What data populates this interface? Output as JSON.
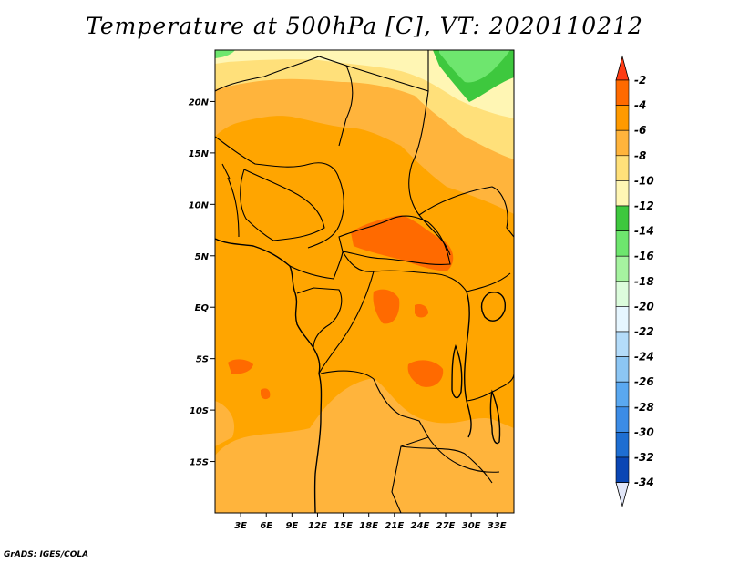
{
  "title": "Temperature at 500hPa [C], VT: 2020110212",
  "credit": "GrADS: IGES/COLA",
  "map": {
    "projection": "latlon",
    "lon_range": [
      0,
      35
    ],
    "lat_range": [
      -20,
      25
    ],
    "lat_ticks": [
      {
        "lat": 20,
        "label": "20N"
      },
      {
        "lat": 15,
        "label": "15N"
      },
      {
        "lat": 10,
        "label": "10N"
      },
      {
        "lat": 5,
        "label": "5N"
      },
      {
        "lat": 0,
        "label": "EQ"
      },
      {
        "lat": -5,
        "label": "5S"
      },
      {
        "lat": -10,
        "label": "10S"
      },
      {
        "lat": -15,
        "label": "15S"
      }
    ],
    "lon_ticks": [
      {
        "lon": 3,
        "label": "3E"
      },
      {
        "lon": 6,
        "label": "6E"
      },
      {
        "lon": 9,
        "label": "9E"
      },
      {
        "lon": 12,
        "label": "12E"
      },
      {
        "lon": 15,
        "label": "15E"
      },
      {
        "lon": 18,
        "label": "18E"
      },
      {
        "lon": 21,
        "label": "21E"
      },
      {
        "lon": 24,
        "label": "24E"
      },
      {
        "lon": 27,
        "label": "27E"
      },
      {
        "lon": 30,
        "label": "30E"
      },
      {
        "lon": 33,
        "label": "33E"
      }
    ]
  },
  "colorbar": {
    "levels": [
      {
        "label": "-2",
        "color": "#ff6a00"
      },
      {
        "label": "-4",
        "color": "#ff9a00"
      },
      {
        "label": "-6",
        "color": "#ffb43c"
      },
      {
        "label": "-8",
        "color": "#ffe07a"
      },
      {
        "label": "-10",
        "color": "#fff6b4"
      },
      {
        "label": "-12",
        "color": "#3ec83e"
      },
      {
        "label": "-14",
        "color": "#6ee66e"
      },
      {
        "label": "-16",
        "color": "#a6f3a0"
      },
      {
        "label": "-18",
        "color": "#dcfcdc"
      },
      {
        "label": "-20",
        "color": "#e6f6ff"
      },
      {
        "label": "-22",
        "color": "#b4dcfa"
      },
      {
        "label": "-24",
        "color": "#8cc6f4"
      },
      {
        "label": "-26",
        "color": "#5aa8f0"
      },
      {
        "label": "-28",
        "color": "#3c8ce6"
      },
      {
        "label": "-30",
        "color": "#1e6ed2"
      },
      {
        "label": "-32",
        "color": "#0a46b4"
      },
      {
        "label": "-34",
        "color": "#0a1a78"
      }
    ],
    "top_arrow_color": "#ff3c14",
    "bottom_arrow_color": "#e1e6f8"
  }
}
